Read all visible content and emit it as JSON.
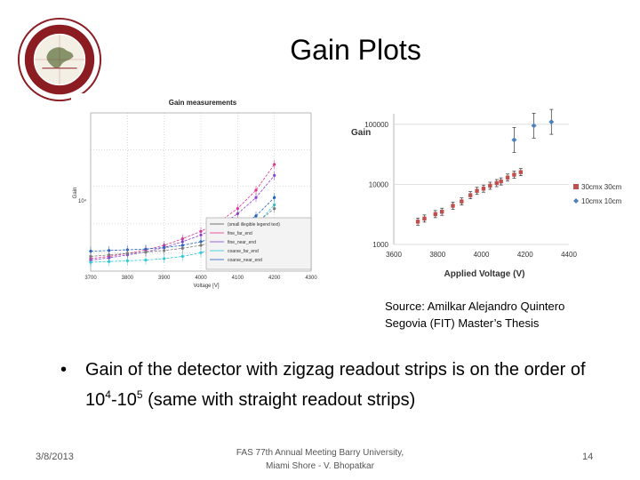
{
  "slide": {
    "title": "Gain Plots",
    "source_line1": "Source: Amilkar Alejandro Quintero",
    "source_line2": "Segovia (FIT) Master’s Thesis",
    "bullet": {
      "prefix": "Gain of the detector with zigzag readout strips is on the order of 10",
      "exp1": "4",
      "middle": "-10",
      "exp2": "5",
      "suffix": " (same with straight readout strips)"
    },
    "footer": {
      "date": "3/8/2013",
      "center_line1": "FAS 77th Annual Meeting Barry University,",
      "center_line2": "Miami Shore - V. Bhopatkar",
      "page": "14"
    }
  },
  "logo": {
    "icon": "florida-tech-seal-icon",
    "color": "#8a1c22"
  },
  "chart_data": [
    {
      "type": "line",
      "title": "Gain measurements",
      "xlabel": "Voltage [V]",
      "ylabel": "Gain",
      "ytick": "10⁴",
      "x_ticks": [
        "3700",
        "3800",
        "3900",
        "4000",
        "4100",
        "4200",
        "4300"
      ],
      "xlim": [
        3700,
        4300
      ],
      "ylim": [
        3500,
        25000
      ],
      "x": [
        3700,
        3750,
        3800,
        3850,
        3900,
        3950,
        4000,
        4050,
        4100,
        4150,
        4200
      ],
      "series": [
        {
          "color": "#e0358f",
          "values": [
            5200,
            5500,
            5900,
            6400,
            7000,
            7900,
            8900,
            10200,
            12000,
            14500,
            18000
          ]
        },
        {
          "color": "#8a3fd1",
          "values": [
            5000,
            5300,
            5700,
            6100,
            6700,
            7500,
            8400,
            9600,
            11300,
            13500,
            16500
          ]
        },
        {
          "color": "#1f5fc0",
          "values": [
            6200,
            6300,
            6400,
            6500,
            6700,
            7000,
            7500,
            8300,
            9400,
            11000,
            13500
          ]
        },
        {
          "color": "#2ec8d8",
          "values": [
            4700,
            4800,
            4900,
            5000,
            5200,
            5500,
            6000,
            6900,
            8000,
            9800,
            12500
          ]
        },
        {
          "color": "#7a7a7a",
          "values": [
            5500,
            5700,
            5900,
            6100,
            6300,
            6600,
            7000,
            7700,
            8600,
            10000,
            12000
          ]
        }
      ],
      "legend_placement": "bottom-right",
      "legend": [
        "(small illegible legend text)",
        "fine_far_end",
        "fine_near_end",
        "coarse_far_end",
        "coarse_near_end"
      ],
      "legend_colors": [
        "#555555",
        "#e0358f",
        "#8a3fd1",
        "#2ec8d8",
        "#1f5fc0"
      ],
      "grid": true
    },
    {
      "type": "scatter",
      "title": "Gain",
      "xlabel": "Applied Voltage (V)",
      "x_ticks": [
        "3600",
        "3800",
        "4000",
        "4200",
        "4400"
      ],
      "y_ticks": [
        "100000",
        "10000",
        "1000"
      ],
      "xlim": [
        3600,
        4400
      ],
      "ylim": [
        1000,
        150000
      ],
      "log_y": true,
      "legend_placement": "right",
      "series": [
        {
          "name": "30cmx 30cm",
          "color": "#c0504d",
          "marker": "square",
          "points": [
            [
              3710,
              2400
            ],
            [
              3740,
              2700
            ],
            [
              3790,
              3200
            ],
            [
              3820,
              3500
            ],
            [
              3870,
              4400
            ],
            [
              3910,
              5200
            ],
            [
              3950,
              6600
            ],
            [
              3980,
              7800
            ],
            [
              4010,
              8500
            ],
            [
              4040,
              9500
            ],
            [
              4070,
              10500
            ],
            [
              4090,
              11200
            ],
            [
              4120,
              13000
            ],
            [
              4150,
              14500
            ],
            [
              4180,
              16000
            ]
          ]
        },
        {
          "name": "10cmx 10cm",
          "color": "#4f81bd",
          "marker": "diamond",
          "points": [
            [
              4150,
              55000
            ],
            [
              4240,
              95000
            ],
            [
              4320,
              110000
            ]
          ]
        }
      ]
    }
  ]
}
